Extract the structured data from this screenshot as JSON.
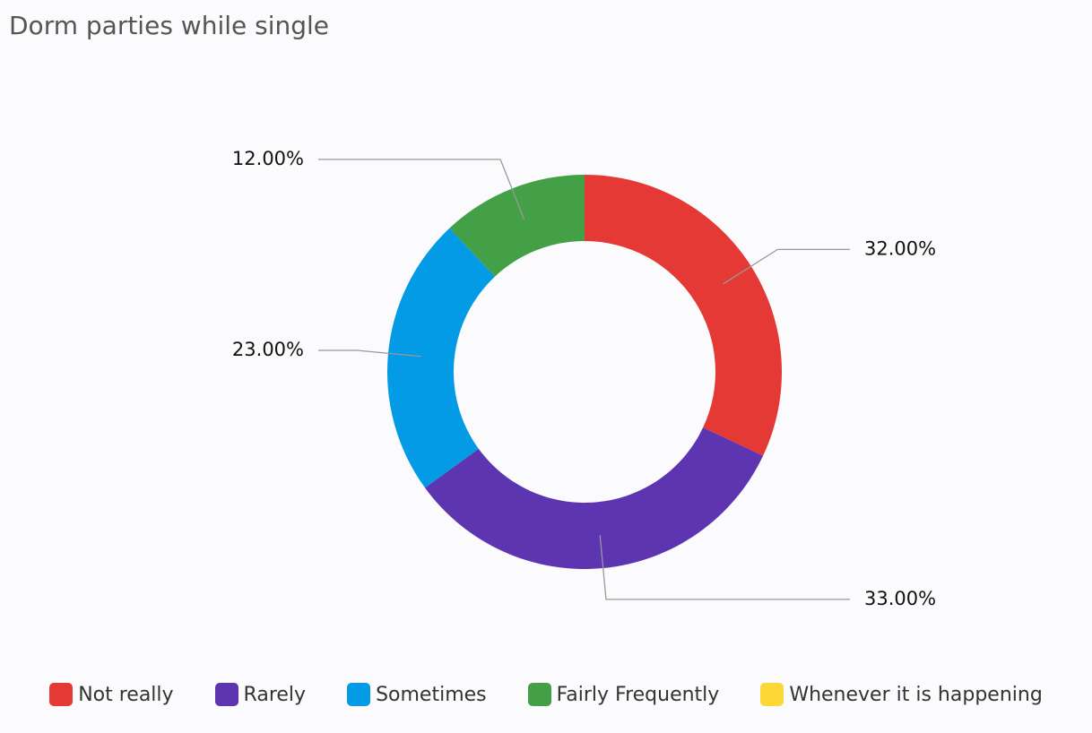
{
  "chart_data": {
    "type": "donut",
    "title": "Dorm parties while single",
    "categories": [
      "Not really",
      "Rarely",
      "Sometimes",
      "Fairly Frequently",
      "Whenever it is happening"
    ],
    "values": [
      32,
      33,
      23,
      12,
      0
    ],
    "value_labels": [
      "32.00%",
      "33.00%",
      "23.00%",
      "12.00%",
      null
    ],
    "colors": [
      "#e53935",
      "#5e35b1",
      "#039be5",
      "#43a047",
      "#fdd835"
    ],
    "legend": "bottom"
  }
}
